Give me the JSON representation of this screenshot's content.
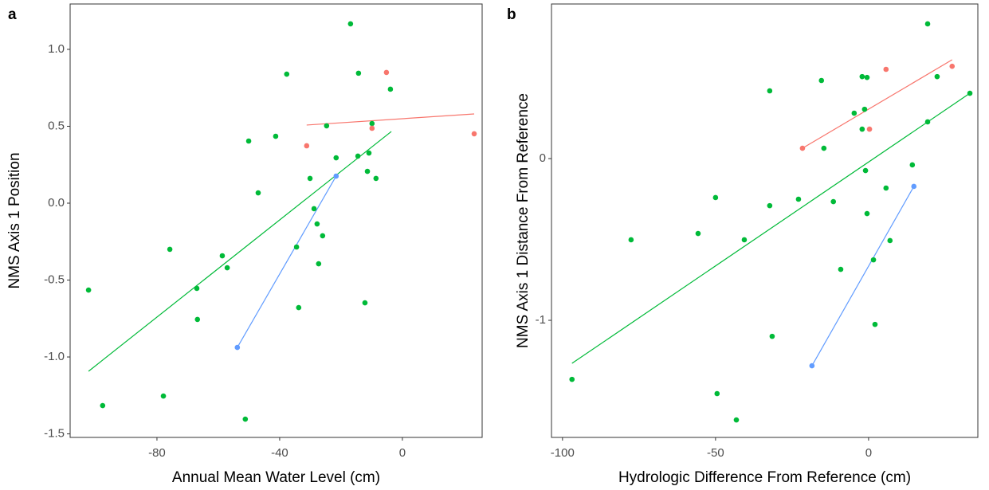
{
  "chart_data": [
    {
      "type": "scatter",
      "panel_label": "a",
      "x_label": "Annual Mean Water Level (cm)",
      "y_label": "NMS Axis 1 Position",
      "xlim": [
        -108.3,
        26
      ],
      "ylim": [
        -1.523,
        1.295
      ],
      "xticks": [
        -80,
        -40,
        0
      ],
      "yticks": [
        {
          "value": 1,
          "label": "1.0"
        },
        0.5,
        {
          "value": 0,
          "label": "0.0"
        },
        -0.5,
        {
          "value": -1,
          "label": "-1.0"
        },
        -1.5
      ],
      "series": [
        {
          "color": "#00BA38",
          "x": [
            -102.3,
            -97.7,
            -77.9,
            -75.8,
            -67.0,
            -66.8,
            -58.7,
            -57.1,
            -51.2,
            -50.1,
            -47.0,
            -41.3,
            -37.7,
            -34.5,
            -33.8,
            -30.1,
            -28.8,
            -27.8,
            -27.3,
            -26.0,
            -24.7,
            -21.6,
            -16.9,
            -14.5,
            -14.3,
            -12.2,
            -11.4,
            -10.9,
            -9.9,
            -8.6,
            -3.9
          ],
          "values": [
            -0.565,
            -1.316,
            -1.254,
            -0.3,
            -0.554,
            -0.756,
            -0.342,
            -0.42,
            -1.404,
            0.404,
            0.067,
            0.435,
            0.839,
            -0.285,
            -0.679,
            0.161,
            -0.036,
            -0.135,
            -0.394,
            -0.212,
            0.503,
            0.295,
            1.166,
            0.306,
            0.845,
            -0.648,
            0.207,
            0.326,
            0.518,
            0.161,
            0.741
          ]
        },
        {
          "color": "#F8766D",
          "x": [
            -31.2,
            -5.2,
            -9.9,
            23.4
          ],
          "values": [
            0.373,
            0.85,
            0.487,
            0.451
          ]
        },
        {
          "color": "#619CFF",
          "x": [
            -53.8,
            -21.6
          ],
          "values": [
            -0.938,
            0.176
          ]
        }
      ],
      "lines": [
        {
          "color": "#00BA38",
          "x": [
            -102.3,
            -3.6
          ],
          "values": [
            -1.093,
            0.466
          ]
        },
        {
          "color": "#F8766D",
          "x": [
            -31.2,
            23.4
          ],
          "values": [
            0.508,
            0.58
          ]
        },
        {
          "color": "#619CFF",
          "x": [
            -53.8,
            -21.6
          ],
          "values": [
            -0.938,
            0.176
          ]
        }
      ]
    },
    {
      "type": "scatter",
      "panel_label": "b",
      "x_label": "Hydrologic Difference From Reference (cm)",
      "y_label": "NMS Axis 1 Distance From Reference",
      "xlim": [
        -103.6,
        35.7
      ],
      "ylim": [
        -1.724,
        0.956
      ],
      "xticks": [
        -100,
        -50,
        0
      ],
      "yticks": [
        0,
        -1
      ],
      "series": [
        {
          "color": "#00BA38",
          "x": [
            -96.9,
            -77.6,
            -55.7,
            -50,
            -49.5,
            -43.2,
            -40.6,
            -32.3,
            -32.3,
            -31.5,
            -22.9,
            -15.4,
            -14.6,
            -11.5,
            -9.1,
            -4.7,
            -2.1,
            -2.1,
            -1.3,
            -1.0,
            -0.5,
            -0.5,
            1.6,
            2.1,
            5.7,
            7.0,
            14.3,
            19.3,
            19.3,
            22.4,
            33.1
          ],
          "values": [
            -1.365,
            -0.502,
            -0.463,
            -0.241,
            -1.453,
            -1.616,
            -0.502,
            0.419,
            -0.291,
            -1.099,
            -0.251,
            0.483,
            0.064,
            -0.266,
            -0.685,
            0.281,
            0.507,
            0.182,
            0.305,
            -0.074,
            0.502,
            -0.34,
            -0.626,
            -1.025,
            -0.182,
            -0.507,
            -0.039,
            0.833,
            0.227,
            0.507,
            0.404
          ]
        },
        {
          "color": "#F8766D",
          "x": [
            -21.6,
            0.3,
            5.7,
            27.3
          ],
          "values": [
            0.064,
            0.182,
            0.552,
            0.571
          ]
        },
        {
          "color": "#619CFF",
          "x": [
            -18.5,
            14.8
          ],
          "values": [
            -1.281,
            -0.172
          ]
        }
      ],
      "lines": [
        {
          "color": "#00BA38",
          "x": [
            -96.9,
            33.1
          ],
          "values": [
            -1.266,
            0.404
          ]
        },
        {
          "color": "#F8766D",
          "x": [
            -21.6,
            27.3
          ],
          "values": [
            0.064,
            0.611
          ]
        },
        {
          "color": "#619CFF",
          "x": [
            -18.5,
            14.8
          ],
          "values": [
            -1.281,
            -0.172
          ]
        }
      ]
    }
  ]
}
